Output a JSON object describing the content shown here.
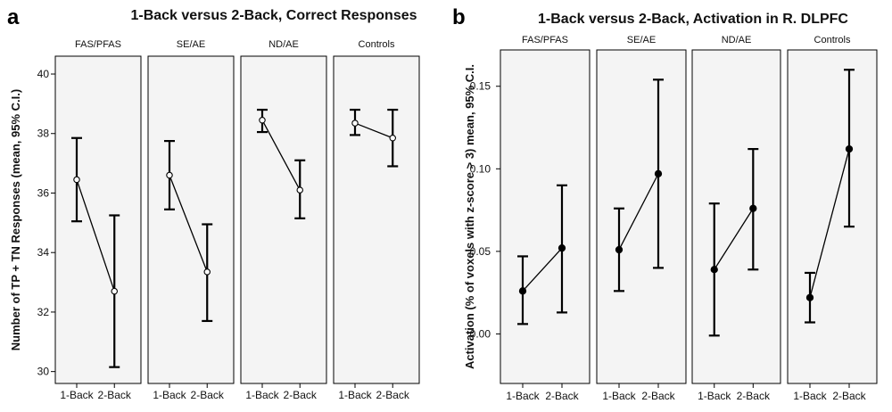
{
  "chart_data": [
    {
      "type": "line",
      "panel_label": "a",
      "title": "1-Back versus 2-Back, Correct Responses",
      "ylabel": "Number of TP + TN Responses (mean, 95% C.I.)",
      "ylim": [
        29.6,
        40.6
      ],
      "yticks": [
        30,
        32,
        34,
        36,
        38,
        40
      ],
      "categories": [
        "1-Back",
        "2-Back"
      ],
      "marker": "open-circle",
      "groups": [
        {
          "name": "FAS/PFAS",
          "x_labels": [
            "1-Back",
            "2-Back"
          ],
          "mean": [
            36.45,
            32.7
          ],
          "lower": [
            35.05,
            30.15
          ],
          "upper": [
            37.85,
            35.25
          ]
        },
        {
          "name": "SE/AE",
          "x_labels": [
            "1-Back",
            "2-Back"
          ],
          "mean": [
            36.6,
            33.35
          ],
          "lower": [
            35.45,
            31.7
          ],
          "upper": [
            37.75,
            34.95
          ]
        },
        {
          "name": "ND/AE",
          "x_labels": [
            "1-Back",
            "2-Back"
          ],
          "mean": [
            38.45,
            36.1
          ],
          "lower": [
            38.05,
            35.15
          ],
          "upper": [
            38.8,
            37.1
          ]
        },
        {
          "name": "Controls",
          "x_labels": [
            "1-Back",
            "2-Back"
          ],
          "mean": [
            38.35,
            37.85
          ],
          "lower": [
            37.95,
            36.9
          ],
          "upper": [
            38.8,
            38.8
          ]
        }
      ]
    },
    {
      "type": "line",
      "panel_label": "b",
      "title": "1-Back versus 2-Back, Activation in R. DLPFC",
      "ylabel": "Activation (% of voxels with z-score > 3) mean, 95% C.I.",
      "ylim": [
        -0.03,
        0.172
      ],
      "yticks": [
        0.0,
        0.05,
        0.1,
        0.15
      ],
      "ytick_labels": [
        "0.00",
        "0.05",
        "0.10",
        "0.15"
      ],
      "categories": [
        "1-Back",
        "2-Back"
      ],
      "marker": "filled-circle",
      "groups": [
        {
          "name": "FAS/PFAS",
          "x_labels": [
            "1-Back",
            "2-Back"
          ],
          "mean": [
            0.026,
            0.052
          ],
          "lower": [
            0.006,
            0.013
          ],
          "upper": [
            0.047,
            0.09
          ]
        },
        {
          "name": "SE/AE",
          "x_labels": [
            "1-Back",
            "2-Back"
          ],
          "mean": [
            0.051,
            0.097
          ],
          "lower": [
            0.026,
            0.04
          ],
          "upper": [
            0.076,
            0.154
          ]
        },
        {
          "name": "ND/AE",
          "x_labels": [
            "1-Back",
            "2-Back"
          ],
          "mean": [
            0.039,
            0.076
          ],
          "lower": [
            -0.001,
            0.039
          ],
          "upper": [
            0.079,
            0.112
          ]
        },
        {
          "name": "Controls",
          "x_labels": [
            "1-Back",
            "2-Back"
          ],
          "mean": [
            0.022,
            0.112
          ],
          "lower": [
            0.007,
            0.065
          ],
          "upper": [
            0.037,
            0.16
          ]
        }
      ]
    }
  ]
}
